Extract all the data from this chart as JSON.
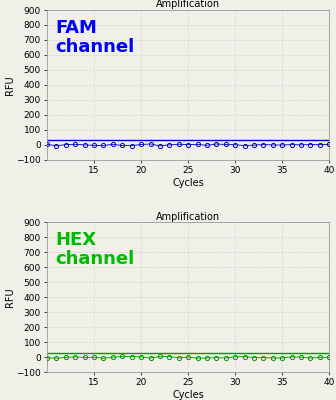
{
  "title": "Amplification",
  "xlabel": "Cycles",
  "ylabel": "RFU",
  "xlim": [
    10,
    40
  ],
  "ylim": [
    -100,
    900
  ],
  "yticks": [
    -100,
    0,
    100,
    200,
    300,
    400,
    500,
    600,
    700,
    800,
    900
  ],
  "xticks": [
    15,
    20,
    25,
    30,
    35,
    40
  ],
  "panel1": {
    "label": "FAM\nchannel",
    "label_color": "#0000FF",
    "line_color": "#0000CC",
    "marker_color": "#0000CC",
    "threshold_y": 30
  },
  "panel2": {
    "label": "HEX\nchannel",
    "label_color": "#00BB00",
    "line_color": "#009900",
    "marker_color": "#009900",
    "threshold_y": 30
  },
  "bg_color": "#f0f0e8",
  "grid_color": "#c8c8c8",
  "title_fontsize": 7,
  "axis_label_fontsize": 7,
  "tick_fontsize": 6.5,
  "channel_label_fontsize": 13,
  "num_points": 31,
  "x_start": 10,
  "x_end": 40
}
